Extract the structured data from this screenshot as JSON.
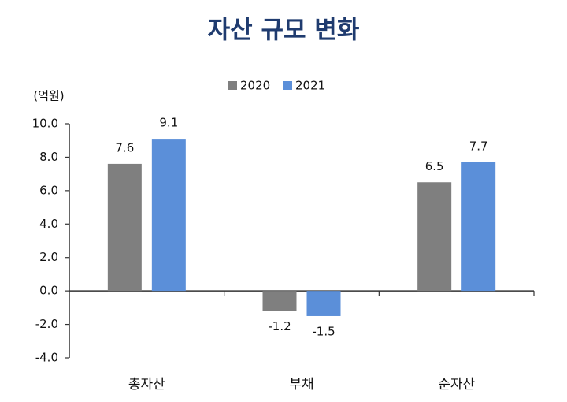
{
  "chart_data": {
    "type": "bar",
    "title": "자산 규모 변화",
    "y_label": "(억원)",
    "categories": [
      "총자산",
      "부채",
      "순자산"
    ],
    "series": [
      {
        "name": "2020",
        "color": "#7f7f7f",
        "values": [
          7.6,
          -1.2,
          6.5
        ]
      },
      {
        "name": "2021",
        "color": "#5b8fd9",
        "values": [
          9.1,
          -1.5,
          7.7
        ]
      }
    ],
    "ylim": [
      -4,
      10
    ],
    "yticks": [
      {
        "value": -4,
        "label": "-4.0"
      },
      {
        "value": -2,
        "label": "-2.0"
      },
      {
        "value": 0,
        "label": "0.0"
      },
      {
        "value": 2,
        "label": "2.0"
      },
      {
        "value": 4,
        "label": "4.0"
      },
      {
        "value": 6,
        "label": "6.0"
      },
      {
        "value": 8,
        "label": "8.0"
      },
      {
        "value": 10,
        "label": "10.0"
      }
    ],
    "grid": false,
    "legend": "top"
  }
}
